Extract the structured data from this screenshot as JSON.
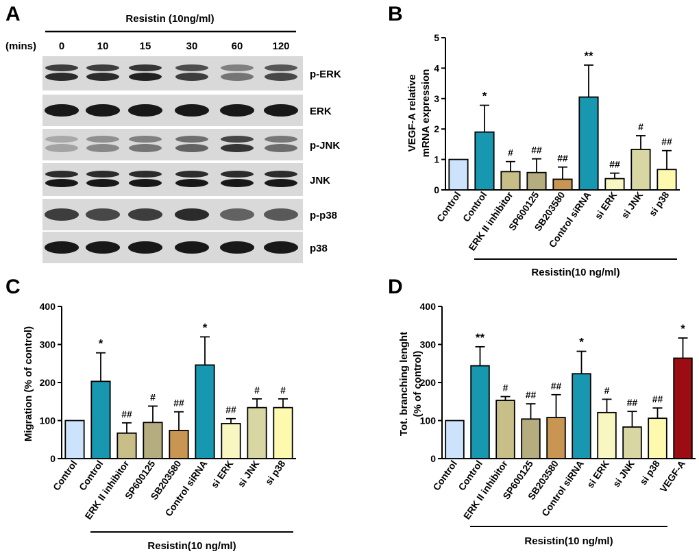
{
  "panels": {
    "A": {
      "letter": "A",
      "treatment": "Resistin (10ng/ml)",
      "time_unit": "(mins)",
      "times": [
        "0",
        "10",
        "15",
        "30",
        "60",
        "120"
      ],
      "blots": [
        {
          "label": "p-ERK",
          "intensity": [
            0.85,
            0.85,
            0.9,
            0.75,
            0.45,
            0.7
          ]
        },
        {
          "label": "ERK",
          "intensity": [
            0.95,
            0.95,
            0.95,
            0.95,
            0.95,
            0.95
          ]
        },
        {
          "label": "p-JNK",
          "intensity": [
            0.2,
            0.35,
            0.45,
            0.55,
            0.8,
            0.5
          ]
        },
        {
          "label": "JNK",
          "intensity": [
            0.95,
            0.95,
            0.95,
            0.95,
            0.95,
            0.95
          ]
        },
        {
          "label": "p-p38",
          "intensity": [
            0.75,
            0.7,
            0.75,
            0.85,
            0.55,
            0.6
          ]
        },
        {
          "label": "p38",
          "intensity": [
            0.95,
            0.95,
            0.95,
            0.95,
            0.95,
            0.95
          ]
        }
      ]
    },
    "B": {
      "letter": "B"
    },
    "C": {
      "letter": "C"
    },
    "D": {
      "letter": "D"
    }
  },
  "colors": {
    "control": "#cde3fb",
    "resistin": "#1798b0",
    "erk_inhibitor": "#c8be87",
    "sp600125": "#b5ad80",
    "sb203580": "#c89552",
    "si_erk": "#f8f7c2",
    "si_jnk": "#d8d7a3",
    "si_p38": "#fdfab0",
    "vegf": "#9b0d12"
  },
  "chart_data": [
    {
      "panel": "B",
      "type": "bar",
      "ylabel": "VEGF-A relative mRNA expression",
      "ylim": [
        0,
        5
      ],
      "yticks": [
        0,
        1,
        2,
        3,
        4,
        5
      ],
      "categories": [
        "Control",
        "Control",
        "ERK II inhibitor",
        "SP600125",
        "SB203580",
        "Control siRNA",
        "si ERK",
        "si JNK",
        "si p38"
      ],
      "values": [
        1.0,
        1.9,
        0.6,
        0.57,
        0.35,
        3.05,
        0.37,
        1.33,
        0.67
      ],
      "errors": [
        0,
        0.88,
        0.33,
        0.45,
        0.4,
        1.05,
        0.18,
        0.45,
        0.62
      ],
      "annotations": [
        "",
        "*",
        "#",
        "##",
        "##",
        "**",
        "##",
        "#",
        "##"
      ],
      "group_label": "Resistin(10 ng/ml)",
      "group_start": 1,
      "group_end": 8,
      "bar_colors": [
        "control",
        "resistin",
        "erk_inhibitor",
        "sp600125",
        "sb203580",
        "resistin",
        "si_erk",
        "si_jnk",
        "si_p38"
      ]
    },
    {
      "panel": "C",
      "type": "bar",
      "ylabel": "Migration (% of control)",
      "ylim": [
        0,
        400
      ],
      "yticks": [
        0,
        100,
        200,
        300,
        400
      ],
      "categories": [
        "Control",
        "Control",
        "ERK II inhibitor",
        "SP600125",
        "SB203580",
        "Control siRNA",
        "si ERK",
        "si JNK",
        "si p38"
      ],
      "values": [
        100,
        203,
        67,
        95,
        74,
        246,
        92,
        134,
        134
      ],
      "errors": [
        0,
        75,
        27,
        43,
        49,
        74,
        13,
        23,
        23
      ],
      "annotations": [
        "",
        "*",
        "##",
        "#",
        "##",
        "*",
        "##",
        "#",
        "#"
      ],
      "group_label": "Resistin(10 ng/ml)",
      "group_start": 1,
      "group_end": 8,
      "bar_colors": [
        "control",
        "resistin",
        "erk_inhibitor",
        "sp600125",
        "sb203580",
        "resistin",
        "si_erk",
        "si_jnk",
        "si_p38"
      ]
    },
    {
      "panel": "D",
      "type": "bar",
      "ylabel": "Tot. branching lenght (% of control)",
      "ylim": [
        0,
        400
      ],
      "yticks": [
        0,
        100,
        200,
        300,
        400
      ],
      "categories": [
        "Control",
        "Control",
        "ERK II inhibitor",
        "SP600125",
        "SB203580",
        "Control siRNA",
        "si ERK",
        "si JNK",
        "si p38",
        "VEGF-A"
      ],
      "values": [
        100,
        244,
        153,
        104,
        108,
        223,
        121,
        83,
        106,
        264
      ],
      "errors": [
        0,
        50,
        10,
        40,
        60,
        59,
        35,
        41,
        27,
        53
      ],
      "annotations": [
        "",
        "**",
        "#",
        "##",
        "##",
        "*",
        "#",
        "##",
        "##",
        "*"
      ],
      "group_label": "Resistin(10 ng/ml)",
      "group_start": 1,
      "group_end": 8,
      "bar_colors": [
        "control",
        "resistin",
        "erk_inhibitor",
        "sp600125",
        "sb203580",
        "resistin",
        "si_erk",
        "si_jnk",
        "si_p38",
        "vegf"
      ]
    }
  ]
}
